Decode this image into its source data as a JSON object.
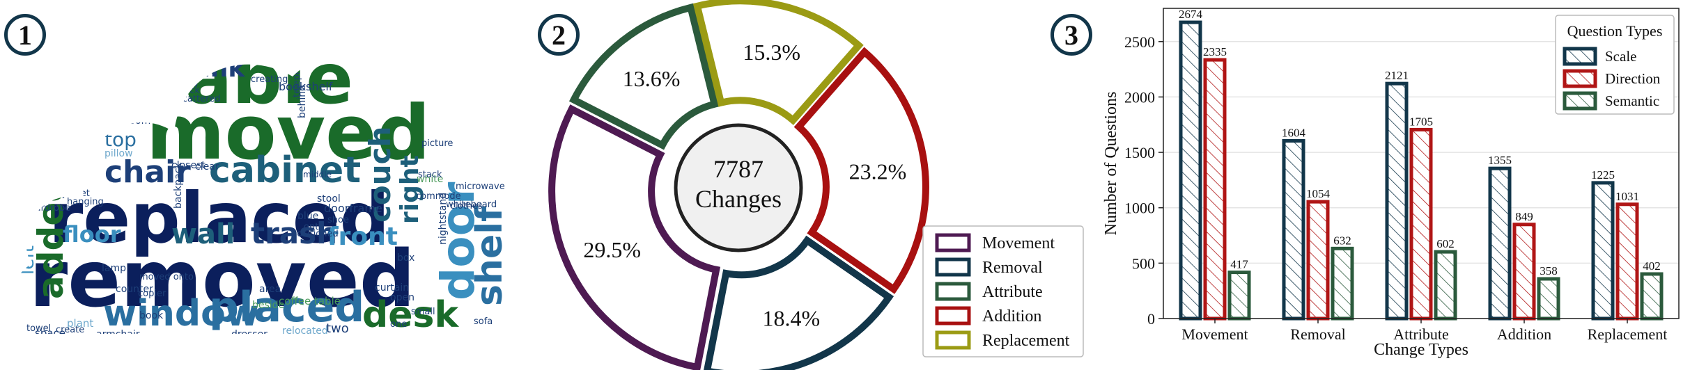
{
  "panels": [
    {
      "badge": "1"
    },
    {
      "badge": "2"
    },
    {
      "badge": "3"
    }
  ],
  "wordcloud": {
    "words": [
      {
        "text": "removed",
        "color": "#0b1f5c"
      },
      {
        "text": "replaced",
        "color": "#0b1f5c"
      },
      {
        "text": "moved",
        "color": "#1a6b2a"
      },
      {
        "text": "table",
        "color": "#1a6b2a"
      },
      {
        "text": "cabinet",
        "color": "#1d5f7a"
      },
      {
        "text": "window",
        "color": "#2a6fa0"
      },
      {
        "text": "placed",
        "color": "#2a6fa0"
      },
      {
        "text": "desk",
        "color": "#1a6b2a"
      },
      {
        "text": "added",
        "color": "#1a6b2a"
      },
      {
        "text": "chair",
        "color": "#1d3f78"
      },
      {
        "text": "trash",
        "color": "#1d3f78"
      },
      {
        "text": "wall",
        "color": "#1d5f7a"
      },
      {
        "text": "floor",
        "color": "#3a8fbf"
      },
      {
        "text": "front",
        "color": "#3a8fbf"
      },
      {
        "text": "shelf",
        "color": "#2a6fa0"
      },
      {
        "text": "door",
        "color": "#3a8fbf"
      },
      {
        "text": "couch",
        "color": "#1d5f7a"
      },
      {
        "text": "sink",
        "color": "#1d3f78"
      },
      {
        "text": "bed",
        "color": "#1a6b2a"
      },
      {
        "text": "top",
        "color": "#2a6fa0"
      },
      {
        "text": "left",
        "color": "#3a8fbf"
      },
      {
        "text": "right",
        "color": "#1d5f7a"
      },
      {
        "text": "bookshelf",
        "color": "#1d3f78"
      },
      {
        "text": "mirror",
        "color": "#1d3f78"
      },
      {
        "text": "pillow",
        "color": "#6fa8cc"
      },
      {
        "text": "room",
        "color": "#1d3f78"
      },
      {
        "text": "backpack",
        "color": "#1d3f78"
      },
      {
        "text": "stool",
        "color": "#1d3f78"
      },
      {
        "text": "doorframe",
        "color": "#1d3f78"
      },
      {
        "text": "box",
        "color": "#1d3f78"
      },
      {
        "text": "curtain",
        "color": "#1d3f78"
      },
      {
        "text": "two",
        "color": "#1d3f78"
      },
      {
        "text": "relocated",
        "color": "#6fa8cc"
      },
      {
        "text": "coffee table",
        "color": "#4a9a5a"
      },
      {
        "text": "armchair",
        "color": "#1d3f78"
      },
      {
        "text": "lamp",
        "color": "#1d3f78"
      },
      {
        "text": "counter",
        "color": "#1d3f78"
      },
      {
        "text": "book",
        "color": "#1d3f78"
      },
      {
        "text": "plant",
        "color": "#6fa8cc"
      },
      {
        "text": "space",
        "color": "#1d3f78"
      },
      {
        "text": "area",
        "color": "#1d3f78"
      },
      {
        "text": "blue",
        "color": "#1d3f78"
      },
      {
        "text": "clear",
        "color": "#1d3f78"
      },
      {
        "text": "closest",
        "color": "#1d3f78"
      },
      {
        "text": "TV",
        "color": "#1d3f78"
      },
      {
        "text": "center",
        "color": "#1d3f78"
      },
      {
        "text": "behind",
        "color": "#1d3f78"
      },
      {
        "text": "white",
        "color": "#4a9a5a"
      },
      {
        "text": "whiteboard",
        "color": "#1d3f78"
      },
      {
        "text": "microwave",
        "color": "#1d3f78"
      },
      {
        "text": "nightstand",
        "color": "#1d3f78"
      },
      {
        "text": "clothes",
        "color": "#1d3f78"
      },
      {
        "text": "dresser",
        "color": "#1d3f78"
      },
      {
        "text": "create",
        "color": "#1d3f78"
      },
      {
        "text": "open",
        "color": "#1d3f78"
      },
      {
        "text": "beside",
        "color": "#4a9a5a"
      },
      {
        "text": "wardrobe",
        "color": "#1d3f78"
      },
      {
        "text": "jacket",
        "color": "#1d3f78"
      },
      {
        "text": "hanging",
        "color": "#1d3f78"
      },
      {
        "text": "creating",
        "color": "#1d3f78"
      },
      {
        "text": "scattered",
        "color": "#1d3f78"
      },
      {
        "text": "telephone",
        "color": "#1d3f78"
      },
      {
        "text": "picture",
        "color": "#1d3f78"
      },
      {
        "text": "commode",
        "color": "#1d3f78"
      },
      {
        "text": "shoe",
        "color": "#1d3f78"
      },
      {
        "text": "onto",
        "color": "#1d3f78"
      },
      {
        "text": "positioned",
        "color": "#1d3f78"
      },
      {
        "text": "one",
        "color": "#1d3f78"
      },
      {
        "text": "stack",
        "color": "#1d3f78"
      },
      {
        "text": "back",
        "color": "#1d3f78"
      },
      {
        "text": "small",
        "color": "#1d3f78"
      },
      {
        "text": "moved onto",
        "color": "#1d3f78"
      },
      {
        "text": "copier",
        "color": "#1d3f78"
      },
      {
        "text": "towel",
        "color": "#1d3f78"
      },
      {
        "text": "sofa",
        "color": "#1d3f78"
      },
      {
        "text": "middle",
        "color": "#1d3f78"
      }
    ]
  },
  "donut": {
    "center_value": "7787",
    "center_label": "Changes",
    "slices": [
      {
        "name": "Movement",
        "percent": 29.5,
        "label": "29.5%",
        "color": "#4e1a52"
      },
      {
        "name": "Attribute",
        "percent": 13.6,
        "label": "13.6%",
        "color": "#2b5a3c"
      },
      {
        "name": "Replacement",
        "percent": 15.3,
        "label": "15.3%",
        "color": "#9b9b14"
      },
      {
        "name": "Addition",
        "percent": 23.2,
        "label": "23.2%",
        "color": "#a81010"
      },
      {
        "name": "Removal",
        "percent": 18.4,
        "label": "18.4%",
        "color": "#12364a"
      }
    ],
    "legend": [
      {
        "name": "Movement",
        "color": "#4e1a52"
      },
      {
        "name": "Removal",
        "color": "#12364a"
      },
      {
        "name": "Attribute",
        "color": "#2b5a3c"
      },
      {
        "name": "Addition",
        "color": "#a81010"
      },
      {
        "name": "Replacement",
        "color": "#9b9b14"
      }
    ]
  },
  "chart_data": {
    "type": "bar",
    "title": "",
    "xlabel": "Change Types",
    "ylabel": "Number of Questions",
    "categories": [
      "Movement",
      "Removal",
      "Attribute",
      "Addition",
      "Replacement"
    ],
    "ylim": [
      0,
      2800
    ],
    "yticks": [
      0,
      500,
      1000,
      1500,
      2000,
      2500
    ],
    "grid": "horizontal",
    "legend_title": "Question Types",
    "legend_position": "top-right",
    "series": [
      {
        "name": "Scale",
        "values": [
          2674,
          1604,
          2121,
          1355,
          1225
        ],
        "color": "#12364a"
      },
      {
        "name": "Direction",
        "values": [
          2335,
          1054,
          1705,
          849,
          1031
        ],
        "color": "#b01515"
      },
      {
        "name": "Semantic",
        "values": [
          417,
          632,
          602,
          358,
          402
        ],
        "color": "#2b5a3c"
      }
    ]
  }
}
